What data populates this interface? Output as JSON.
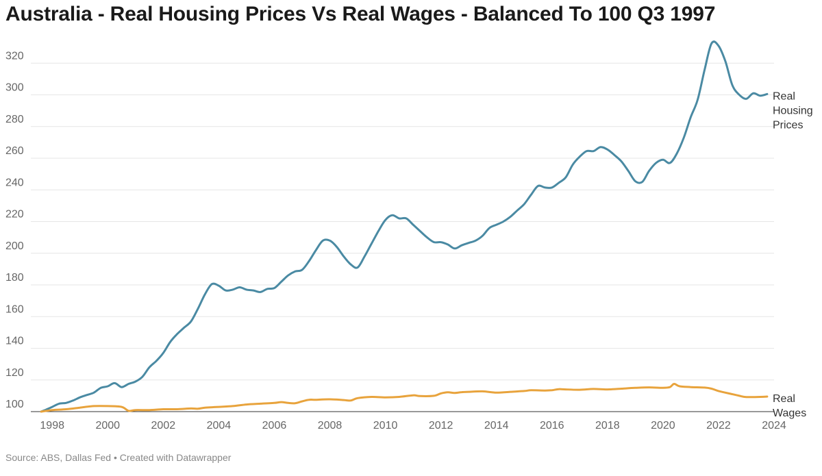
{
  "chart_data": {
    "type": "line",
    "title": "Australia - Real Housing Prices Vs Real Wages - Balanced To 100 Q3 1997",
    "source": "Source: ABS, Dallas Fed • Created with Datawrapper",
    "xlabel": "",
    "ylabel": "",
    "xlim": [
      1997.6,
      2024.0
    ],
    "ylim": [
      100,
      333
    ],
    "y_ticks": [
      100,
      120,
      140,
      160,
      180,
      200,
      220,
      240,
      260,
      280,
      300,
      320
    ],
    "x_ticks": [
      1998,
      2000,
      2002,
      2004,
      2006,
      2008,
      2010,
      2012,
      2014,
      2016,
      2018,
      2020,
      2022,
      2024
    ],
    "grid": true,
    "legend": "direct labels at right",
    "series": [
      {
        "name": "Real Housing Prices",
        "label_lines": [
          "Real",
          "Housing",
          "Prices"
        ],
        "color": "#4a8aa3",
        "points": [
          [
            1997.6,
            100
          ],
          [
            1997.75,
            101
          ],
          [
            1998.0,
            103
          ],
          [
            1998.25,
            105
          ],
          [
            1998.5,
            105.5
          ],
          [
            1998.75,
            107
          ],
          [
            1999.0,
            109
          ],
          [
            1999.25,
            110.5
          ],
          [
            1999.5,
            112
          ],
          [
            1999.75,
            115
          ],
          [
            2000.0,
            116
          ],
          [
            2000.25,
            118
          ],
          [
            2000.5,
            115.5
          ],
          [
            2000.75,
            117.5
          ],
          [
            2001.0,
            119
          ],
          [
            2001.25,
            122
          ],
          [
            2001.5,
            128
          ],
          [
            2001.75,
            132
          ],
          [
            2002.0,
            137
          ],
          [
            2002.25,
            144
          ],
          [
            2002.5,
            149
          ],
          [
            2002.75,
            153
          ],
          [
            2003.0,
            157
          ],
          [
            2003.25,
            165
          ],
          [
            2003.5,
            174
          ],
          [
            2003.75,
            180.5
          ],
          [
            2004.0,
            179.5
          ],
          [
            2004.25,
            176.5
          ],
          [
            2004.5,
            177
          ],
          [
            2004.75,
            178.5
          ],
          [
            2005.0,
            177
          ],
          [
            2005.25,
            176.5
          ],
          [
            2005.5,
            175.5
          ],
          [
            2005.75,
            177.5
          ],
          [
            2006.0,
            178
          ],
          [
            2006.25,
            182
          ],
          [
            2006.5,
            186
          ],
          [
            2006.75,
            188.5
          ],
          [
            2007.0,
            189.5
          ],
          [
            2007.25,
            195
          ],
          [
            2007.5,
            202
          ],
          [
            2007.75,
            208
          ],
          [
            2008.0,
            208
          ],
          [
            2008.25,
            204
          ],
          [
            2008.5,
            198
          ],
          [
            2008.75,
            193
          ],
          [
            2009.0,
            191
          ],
          [
            2009.25,
            198
          ],
          [
            2009.5,
            206
          ],
          [
            2009.75,
            214
          ],
          [
            2010.0,
            221
          ],
          [
            2010.25,
            224
          ],
          [
            2010.5,
            222
          ],
          [
            2010.75,
            222
          ],
          [
            2011.0,
            218
          ],
          [
            2011.25,
            214
          ],
          [
            2011.5,
            210
          ],
          [
            2011.75,
            207
          ],
          [
            2012.0,
            207
          ],
          [
            2012.25,
            205.5
          ],
          [
            2012.5,
            203
          ],
          [
            2012.75,
            205
          ],
          [
            2013.0,
            206.5
          ],
          [
            2013.25,
            208
          ],
          [
            2013.5,
            211
          ],
          [
            2013.75,
            216
          ],
          [
            2014.0,
            218
          ],
          [
            2014.25,
            220
          ],
          [
            2014.5,
            223
          ],
          [
            2014.75,
            227
          ],
          [
            2015.0,
            231
          ],
          [
            2015.25,
            237
          ],
          [
            2015.5,
            242.5
          ],
          [
            2015.75,
            241.5
          ],
          [
            2016.0,
            241.5
          ],
          [
            2016.25,
            244.5
          ],
          [
            2016.5,
            248
          ],
          [
            2016.75,
            256
          ],
          [
            2017.0,
            261
          ],
          [
            2017.25,
            264.5
          ],
          [
            2017.5,
            264.5
          ],
          [
            2017.75,
            267
          ],
          [
            2018.0,
            265.5
          ],
          [
            2018.25,
            262
          ],
          [
            2018.5,
            258
          ],
          [
            2018.75,
            252
          ],
          [
            2019.0,
            245.5
          ],
          [
            2019.25,
            245
          ],
          [
            2019.5,
            252
          ],
          [
            2019.75,
            257
          ],
          [
            2020.0,
            259
          ],
          [
            2020.25,
            257
          ],
          [
            2020.5,
            263
          ],
          [
            2020.75,
            273
          ],
          [
            2021.0,
            286
          ],
          [
            2021.25,
            297
          ],
          [
            2021.5,
            316
          ],
          [
            2021.75,
            332.5
          ],
          [
            2022.0,
            331
          ],
          [
            2022.25,
            321
          ],
          [
            2022.5,
            306
          ],
          [
            2022.75,
            300
          ],
          [
            2023.0,
            297.5
          ],
          [
            2023.25,
            301
          ],
          [
            2023.5,
            299.5
          ],
          [
            2023.75,
            300.5
          ]
        ]
      },
      {
        "name": "Real Wages",
        "label_lines": [
          "Real",
          "Wages"
        ],
        "color": "#e8a33c",
        "points": [
          [
            1997.6,
            100
          ],
          [
            1998.0,
            101
          ],
          [
            1998.5,
            101.5
          ],
          [
            1999.0,
            102.5
          ],
          [
            1999.5,
            103.5
          ],
          [
            2000.0,
            103.5
          ],
          [
            2000.5,
            103
          ],
          [
            2000.75,
            100.5
          ],
          [
            2001.0,
            101
          ],
          [
            2001.5,
            101
          ],
          [
            2002.0,
            101.5
          ],
          [
            2002.5,
            101.5
          ],
          [
            2003.0,
            102
          ],
          [
            2003.25,
            101.8
          ],
          [
            2003.5,
            102.5
          ],
          [
            2004.0,
            103
          ],
          [
            2004.5,
            103.5
          ],
          [
            2005.0,
            104.5
          ],
          [
            2005.5,
            105
          ],
          [
            2006.0,
            105.5
          ],
          [
            2006.25,
            106
          ],
          [
            2006.5,
            105.5
          ],
          [
            2006.75,
            105.3
          ],
          [
            2007.0,
            106.5
          ],
          [
            2007.25,
            107.5
          ],
          [
            2007.5,
            107.5
          ],
          [
            2008.0,
            107.8
          ],
          [
            2008.5,
            107.3
          ],
          [
            2008.75,
            107
          ],
          [
            2009.0,
            108.5
          ],
          [
            2009.5,
            109.3
          ],
          [
            2010.0,
            109
          ],
          [
            2010.5,
            109.3
          ],
          [
            2011.0,
            110.3
          ],
          [
            2011.25,
            109.8
          ],
          [
            2011.75,
            110
          ],
          [
            2012.0,
            111.5
          ],
          [
            2012.25,
            112.2
          ],
          [
            2012.5,
            111.8
          ],
          [
            2012.75,
            112.3
          ],
          [
            2013.0,
            112.5
          ],
          [
            2013.5,
            112.8
          ],
          [
            2014.0,
            112
          ],
          [
            2014.5,
            112.5
          ],
          [
            2015.0,
            113
          ],
          [
            2015.25,
            113.5
          ],
          [
            2015.75,
            113.3
          ],
          [
            2016.0,
            113.5
          ],
          [
            2016.25,
            114.2
          ],
          [
            2016.5,
            114
          ],
          [
            2017.0,
            113.8
          ],
          [
            2017.5,
            114.3
          ],
          [
            2018.0,
            114
          ],
          [
            2018.5,
            114.5
          ],
          [
            2019.0,
            115
          ],
          [
            2019.5,
            115.3
          ],
          [
            2020.0,
            115
          ],
          [
            2020.25,
            115.5
          ],
          [
            2020.4,
            117.5
          ],
          [
            2020.6,
            116
          ],
          [
            2021.0,
            115.5
          ],
          [
            2021.5,
            115.2
          ],
          [
            2021.75,
            114.5
          ],
          [
            2022.0,
            113
          ],
          [
            2022.5,
            111
          ],
          [
            2022.75,
            110
          ],
          [
            2023.0,
            109.2
          ],
          [
            2023.5,
            109.3
          ],
          [
            2023.75,
            109.5
          ]
        ]
      }
    ]
  }
}
